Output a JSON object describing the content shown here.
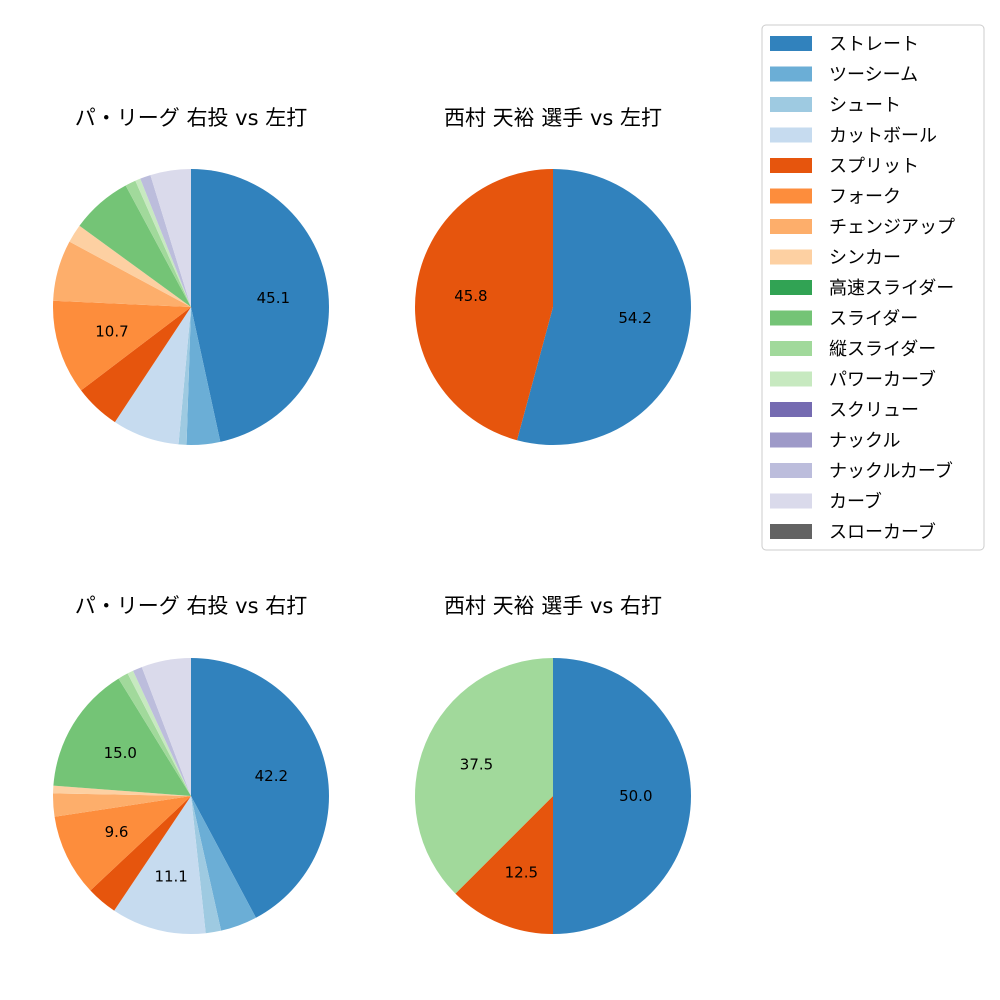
{
  "legend": {
    "items": [
      {
        "label": "ストレート",
        "color": "#3182bd"
      },
      {
        "label": "ツーシーム",
        "color": "#6baed6"
      },
      {
        "label": "シュート",
        "color": "#9ecae1"
      },
      {
        "label": "カットボール",
        "color": "#c6dbef"
      },
      {
        "label": "スプリット",
        "color": "#e6550d"
      },
      {
        "label": "フォーク",
        "color": "#fd8d3c"
      },
      {
        "label": "チェンジアップ",
        "color": "#fdae6b"
      },
      {
        "label": "シンカー",
        "color": "#fdd0a2"
      },
      {
        "label": "高速スライダー",
        "color": "#31a354"
      },
      {
        "label": "スライダー",
        "color": "#74c476"
      },
      {
        "label": "縦スライダー",
        "color": "#a1d99b"
      },
      {
        "label": "パワーカーブ",
        "color": "#c7e9c0"
      },
      {
        "label": "スクリュー",
        "color": "#756bb1"
      },
      {
        "label": "ナックル",
        "color": "#9e9ac8"
      },
      {
        "label": "ナックルカーブ",
        "color": "#bcbddc"
      },
      {
        "label": "カーブ",
        "color": "#dadaeb"
      },
      {
        "label": "スローカーブ",
        "color": "#636363"
      }
    ]
  },
  "chart_data": [
    {
      "type": "pie",
      "title": "パ・リーグ 右投 vs 左打",
      "slices": [
        {
          "name": "ストレート",
          "value": 45.1,
          "label": "45.1"
        },
        {
          "name": "ツーシーム",
          "value": 3.8,
          "label": ""
        },
        {
          "name": "シュート",
          "value": 0.9,
          "label": ""
        },
        {
          "name": "カットボール",
          "value": 7.6,
          "label": ""
        },
        {
          "name": "スプリット",
          "value": 5.2,
          "label": ""
        },
        {
          "name": "フォーク",
          "value": 10.7,
          "label": "10.7"
        },
        {
          "name": "チェンジアップ",
          "value": 6.9,
          "label": ""
        },
        {
          "name": "シンカー",
          "value": 2.1,
          "label": ""
        },
        {
          "name": "スライダー",
          "value": 6.9,
          "label": ""
        },
        {
          "name": "縦スライダー",
          "value": 1.2,
          "label": ""
        },
        {
          "name": "パワーカーブ",
          "value": 0.6,
          "label": ""
        },
        {
          "name": "ナックルカーブ",
          "value": 1.2,
          "label": ""
        },
        {
          "name": "カーブ",
          "value": 4.6,
          "label": ""
        }
      ]
    },
    {
      "type": "pie",
      "title": "西村 天裕 選手 vs 左打",
      "slices": [
        {
          "name": "ストレート",
          "value": 54.2,
          "label": "54.2"
        },
        {
          "name": "スプリット",
          "value": 45.8,
          "label": "45.8"
        }
      ]
    },
    {
      "type": "pie",
      "title": "パ・リーグ 右投 vs 右打",
      "slices": [
        {
          "name": "ストレート",
          "value": 42.2,
          "label": "42.2"
        },
        {
          "name": "ツーシーム",
          "value": 4.3,
          "label": ""
        },
        {
          "name": "シュート",
          "value": 1.8,
          "label": ""
        },
        {
          "name": "カットボール",
          "value": 11.1,
          "label": "11.1"
        },
        {
          "name": "スプリット",
          "value": 3.6,
          "label": ""
        },
        {
          "name": "フォーク",
          "value": 9.6,
          "label": "9.6"
        },
        {
          "name": "チェンジアップ",
          "value": 2.7,
          "label": ""
        },
        {
          "name": "シンカー",
          "value": 0.9,
          "label": ""
        },
        {
          "name": "スライダー",
          "value": 15.0,
          "label": "15.0"
        },
        {
          "name": "縦スライダー",
          "value": 1.2,
          "label": ""
        },
        {
          "name": "パワーカーブ",
          "value": 0.7,
          "label": ""
        },
        {
          "name": "ナックルカーブ",
          "value": 1.1,
          "label": ""
        },
        {
          "name": "カーブ",
          "value": 5.8,
          "label": ""
        }
      ]
    },
    {
      "type": "pie",
      "title": "西村 天裕 選手 vs 右打",
      "slices": [
        {
          "name": "ストレート",
          "value": 50.0,
          "label": "50.0"
        },
        {
          "name": "スプリット",
          "value": 12.5,
          "label": "12.5"
        },
        {
          "name": "縦スライダー",
          "value": 37.5,
          "label": "37.5"
        }
      ]
    }
  ]
}
